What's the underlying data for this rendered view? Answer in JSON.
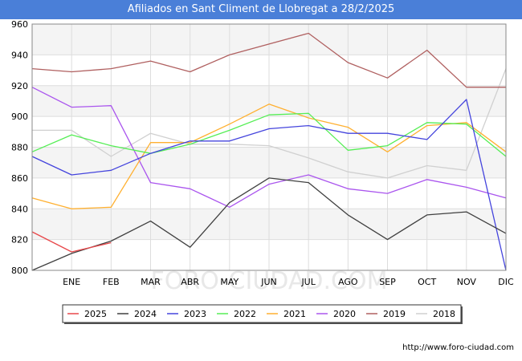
{
  "chart_data": {
    "type": "line",
    "title": "Afiliados en Sant Climent de Llobregat a 28/2/2025",
    "categories": [
      "",
      "ENE",
      "FEB",
      "MAR",
      "ABR",
      "MAY",
      "JUN",
      "JUL",
      "AGO",
      "SEP",
      "OCT",
      "NOV",
      "DIC"
    ],
    "ylim": [
      800,
      960
    ],
    "yticks": [
      800,
      820,
      840,
      860,
      880,
      900,
      920,
      940,
      960
    ],
    "xlabel": "",
    "ylabel": "",
    "grid": true,
    "legend_position": "bottom",
    "series": [
      {
        "name": "2025",
        "color": "#e8474a",
        "values": [
          825,
          812,
          818,
          null,
          null,
          null,
          null,
          null,
          null,
          null,
          null,
          null,
          null
        ]
      },
      {
        "name": "2024",
        "color": "#404040",
        "values": [
          800,
          811,
          819,
          832,
          815,
          844,
          860,
          857,
          836,
          820,
          836,
          838,
          824
        ]
      },
      {
        "name": "2023",
        "color": "#4444dd",
        "values": [
          874,
          862,
          865,
          876,
          884,
          884,
          892,
          894,
          889,
          889,
          885,
          911,
          800
        ]
      },
      {
        "name": "2022",
        "color": "#55ee55",
        "values": [
          877,
          888,
          881,
          876,
          882,
          891,
          901,
          902,
          878,
          881,
          896,
          895,
          874
        ]
      },
      {
        "name": "2021",
        "color": "#ffb030",
        "values": [
          847,
          840,
          841,
          883,
          883,
          895,
          908,
          899,
          893,
          877,
          894,
          896,
          877
        ]
      },
      {
        "name": "2020",
        "color": "#aa55ee",
        "values": [
          919,
          906,
          907,
          857,
          853,
          841,
          856,
          862,
          853,
          850,
          859,
          854,
          847
        ]
      },
      {
        "name": "2019",
        "color": "#b06060",
        "values": [
          931,
          929,
          931,
          936,
          929,
          940,
          947,
          954,
          935,
          925,
          943,
          919,
          919
        ]
      },
      {
        "name": "2018",
        "color": "#d0d0d0",
        "values": [
          891,
          891,
          874,
          889,
          882,
          882,
          881,
          873,
          864,
          860,
          868,
          865,
          931
        ]
      }
    ]
  },
  "footer": {
    "url": "http://www.foro-ciudad.com"
  },
  "watermark": "FORO-CIUDAD.COM"
}
